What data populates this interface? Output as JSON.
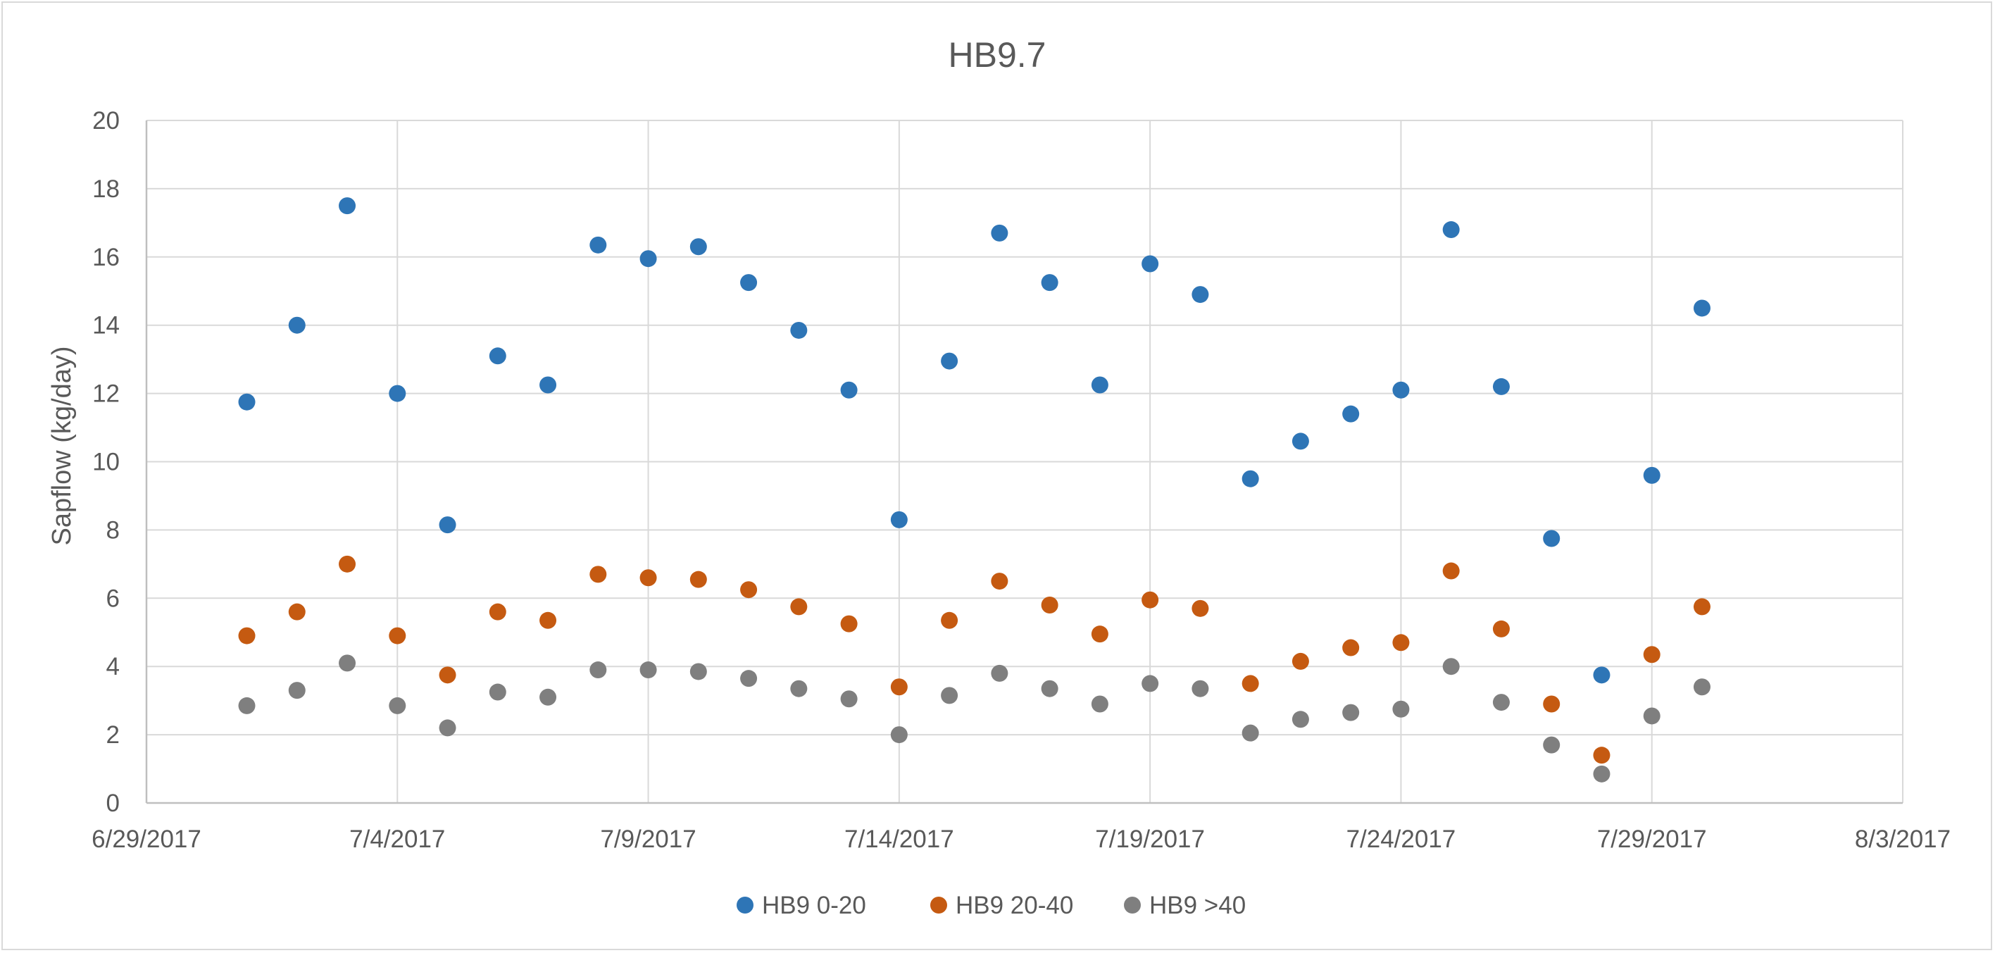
{
  "chart_data": {
    "type": "scatter",
    "title": "HB9.7",
    "xlabel": "",
    "ylabel": "Sapflow (kg/day)",
    "x_axis": {
      "type": "date",
      "min": "2017-06-29",
      "max": "2017-08-03",
      "tick_labels": [
        "6/29/2017",
        "7/4/2017",
        "7/9/2017",
        "7/14/2017",
        "7/19/2017",
        "7/24/2017",
        "7/29/2017",
        "8/3/2017"
      ]
    },
    "y_axis": {
      "min": 0,
      "max": 20,
      "tick_labels": [
        "0",
        "2",
        "4",
        "6",
        "8",
        "10",
        "12",
        "14",
        "16",
        "18",
        "20"
      ]
    },
    "grid": true,
    "legend_position": "bottom",
    "x": [
      "2017-07-01",
      "2017-07-02",
      "2017-07-03",
      "2017-07-04",
      "2017-07-05",
      "2017-07-06",
      "2017-07-07",
      "2017-07-08",
      "2017-07-09",
      "2017-07-10",
      "2017-07-11",
      "2017-07-12",
      "2017-07-13",
      "2017-07-14",
      "2017-07-15",
      "2017-07-16",
      "2017-07-17",
      "2017-07-18",
      "2017-07-19",
      "2017-07-20",
      "2017-07-21",
      "2017-07-22",
      "2017-07-23",
      "2017-07-24",
      "2017-07-25",
      "2017-07-26",
      "2017-07-27",
      "2017-07-28",
      "2017-07-29",
      "2017-07-30"
    ],
    "series": [
      {
        "name": "HB9 0-20",
        "color": "#2e75b6",
        "values": [
          11.75,
          14.0,
          17.5,
          12.0,
          8.15,
          13.1,
          12.25,
          16.35,
          15.95,
          16.3,
          15.25,
          13.85,
          12.1,
          8.3,
          12.95,
          16.7,
          15.25,
          12.25,
          15.8,
          14.9,
          9.5,
          10.6,
          11.4,
          12.1,
          16.8,
          12.2,
          7.75,
          3.75,
          9.6,
          14.5
        ]
      },
      {
        "name": "HB9 20-40",
        "color": "#c55a11",
        "values": [
          4.9,
          5.6,
          7.0,
          4.9,
          3.75,
          5.6,
          5.35,
          6.7,
          6.6,
          6.55,
          6.25,
          5.75,
          5.25,
          3.4,
          5.35,
          6.5,
          5.8,
          4.95,
          5.95,
          5.7,
          3.5,
          4.15,
          4.55,
          4.7,
          6.8,
          5.1,
          2.9,
          1.4,
          4.35,
          5.75
        ]
      },
      {
        "name": "HB9 >40",
        "color": "#7f7f7f",
        "values": [
          2.85,
          3.3,
          4.1,
          2.85,
          2.2,
          3.25,
          3.1,
          3.9,
          3.9,
          3.85,
          3.65,
          3.35,
          3.05,
          2.0,
          3.15,
          3.8,
          3.35,
          2.9,
          3.5,
          3.35,
          2.05,
          2.45,
          2.65,
          2.75,
          4.0,
          2.95,
          1.7,
          0.85,
          2.55,
          3.4
        ]
      }
    ]
  }
}
